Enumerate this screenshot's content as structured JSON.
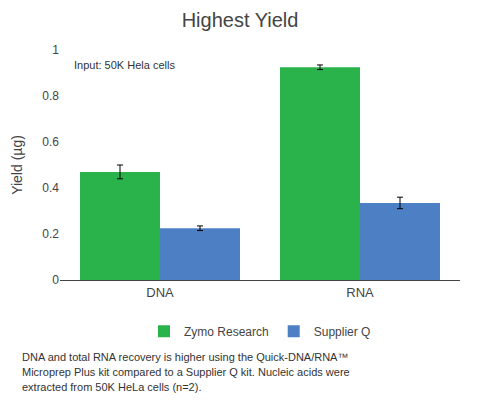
{
  "chart_data": {
    "type": "bar",
    "title": "Highest Yield",
    "ylabel": "Yield (µg)",
    "categories": [
      "DNA",
      "RNA"
    ],
    "series": [
      {
        "name": "Zymo Research",
        "color": "#2ab24b",
        "values": [
          0.47,
          0.925
        ],
        "errors": [
          0.03,
          0.01
        ]
      },
      {
        "name": "Supplier Q",
        "color": "#4d7fc4",
        "values": [
          0.225,
          0.335
        ],
        "errors": [
          0.01,
          0.025
        ]
      }
    ],
    "ylim": [
      0,
      1
    ],
    "yticks": [
      0,
      0.2,
      0.4,
      0.6,
      0.8,
      1
    ],
    "grid": false,
    "legend": "bottom",
    "annotations": [
      "Input: 50K Hela cells",
      "DNA and total RNA recovery is higher using the Quick-DNA/RNA™",
      "Microprep Plus kit compared to a Supplier Q kit. Nucleic acids were",
      "extracted from 50K HeLa cells (n=2)."
    ]
  }
}
